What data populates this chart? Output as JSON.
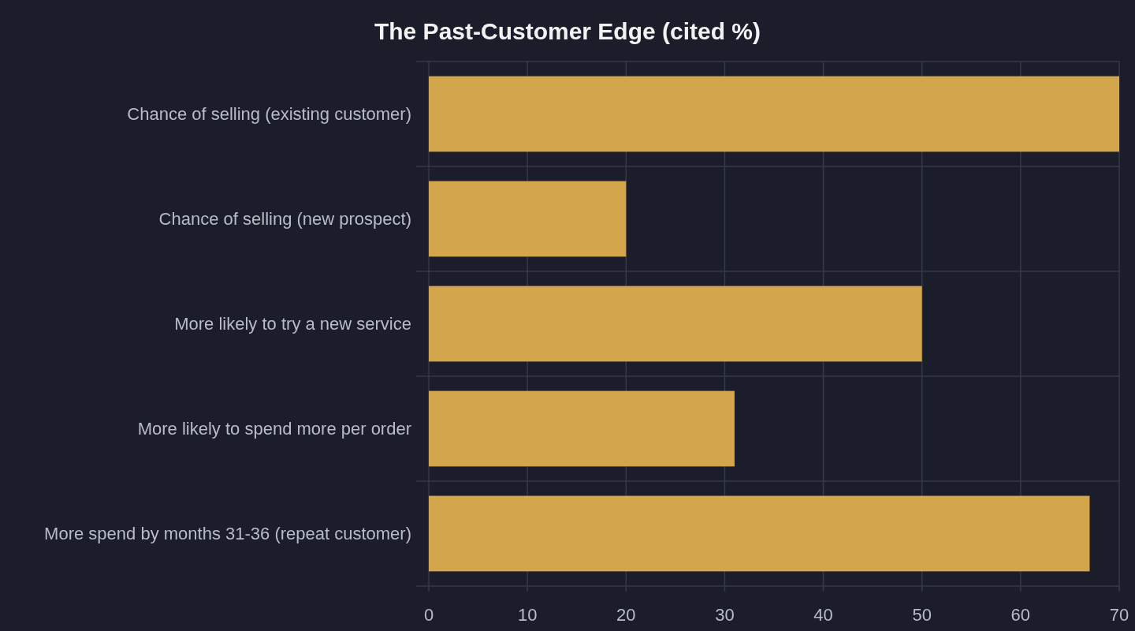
{
  "chart_data": {
    "type": "bar",
    "title": "The Past-Customer Edge (cited %)",
    "orientation": "horizontal",
    "categories": [
      "Chance of selling (existing customer)",
      "Chance of selling (new prospect)",
      "More likely to try a new service",
      "More likely to spend more per order",
      "More spend by months 31-36 (repeat customer)"
    ],
    "values": [
      70,
      20,
      50,
      31,
      67
    ],
    "color": "#d4a64c",
    "xlim": [
      0,
      70
    ],
    "xticks": [
      0,
      10,
      20,
      30,
      40,
      50,
      60,
      70
    ],
    "grid": true
  }
}
